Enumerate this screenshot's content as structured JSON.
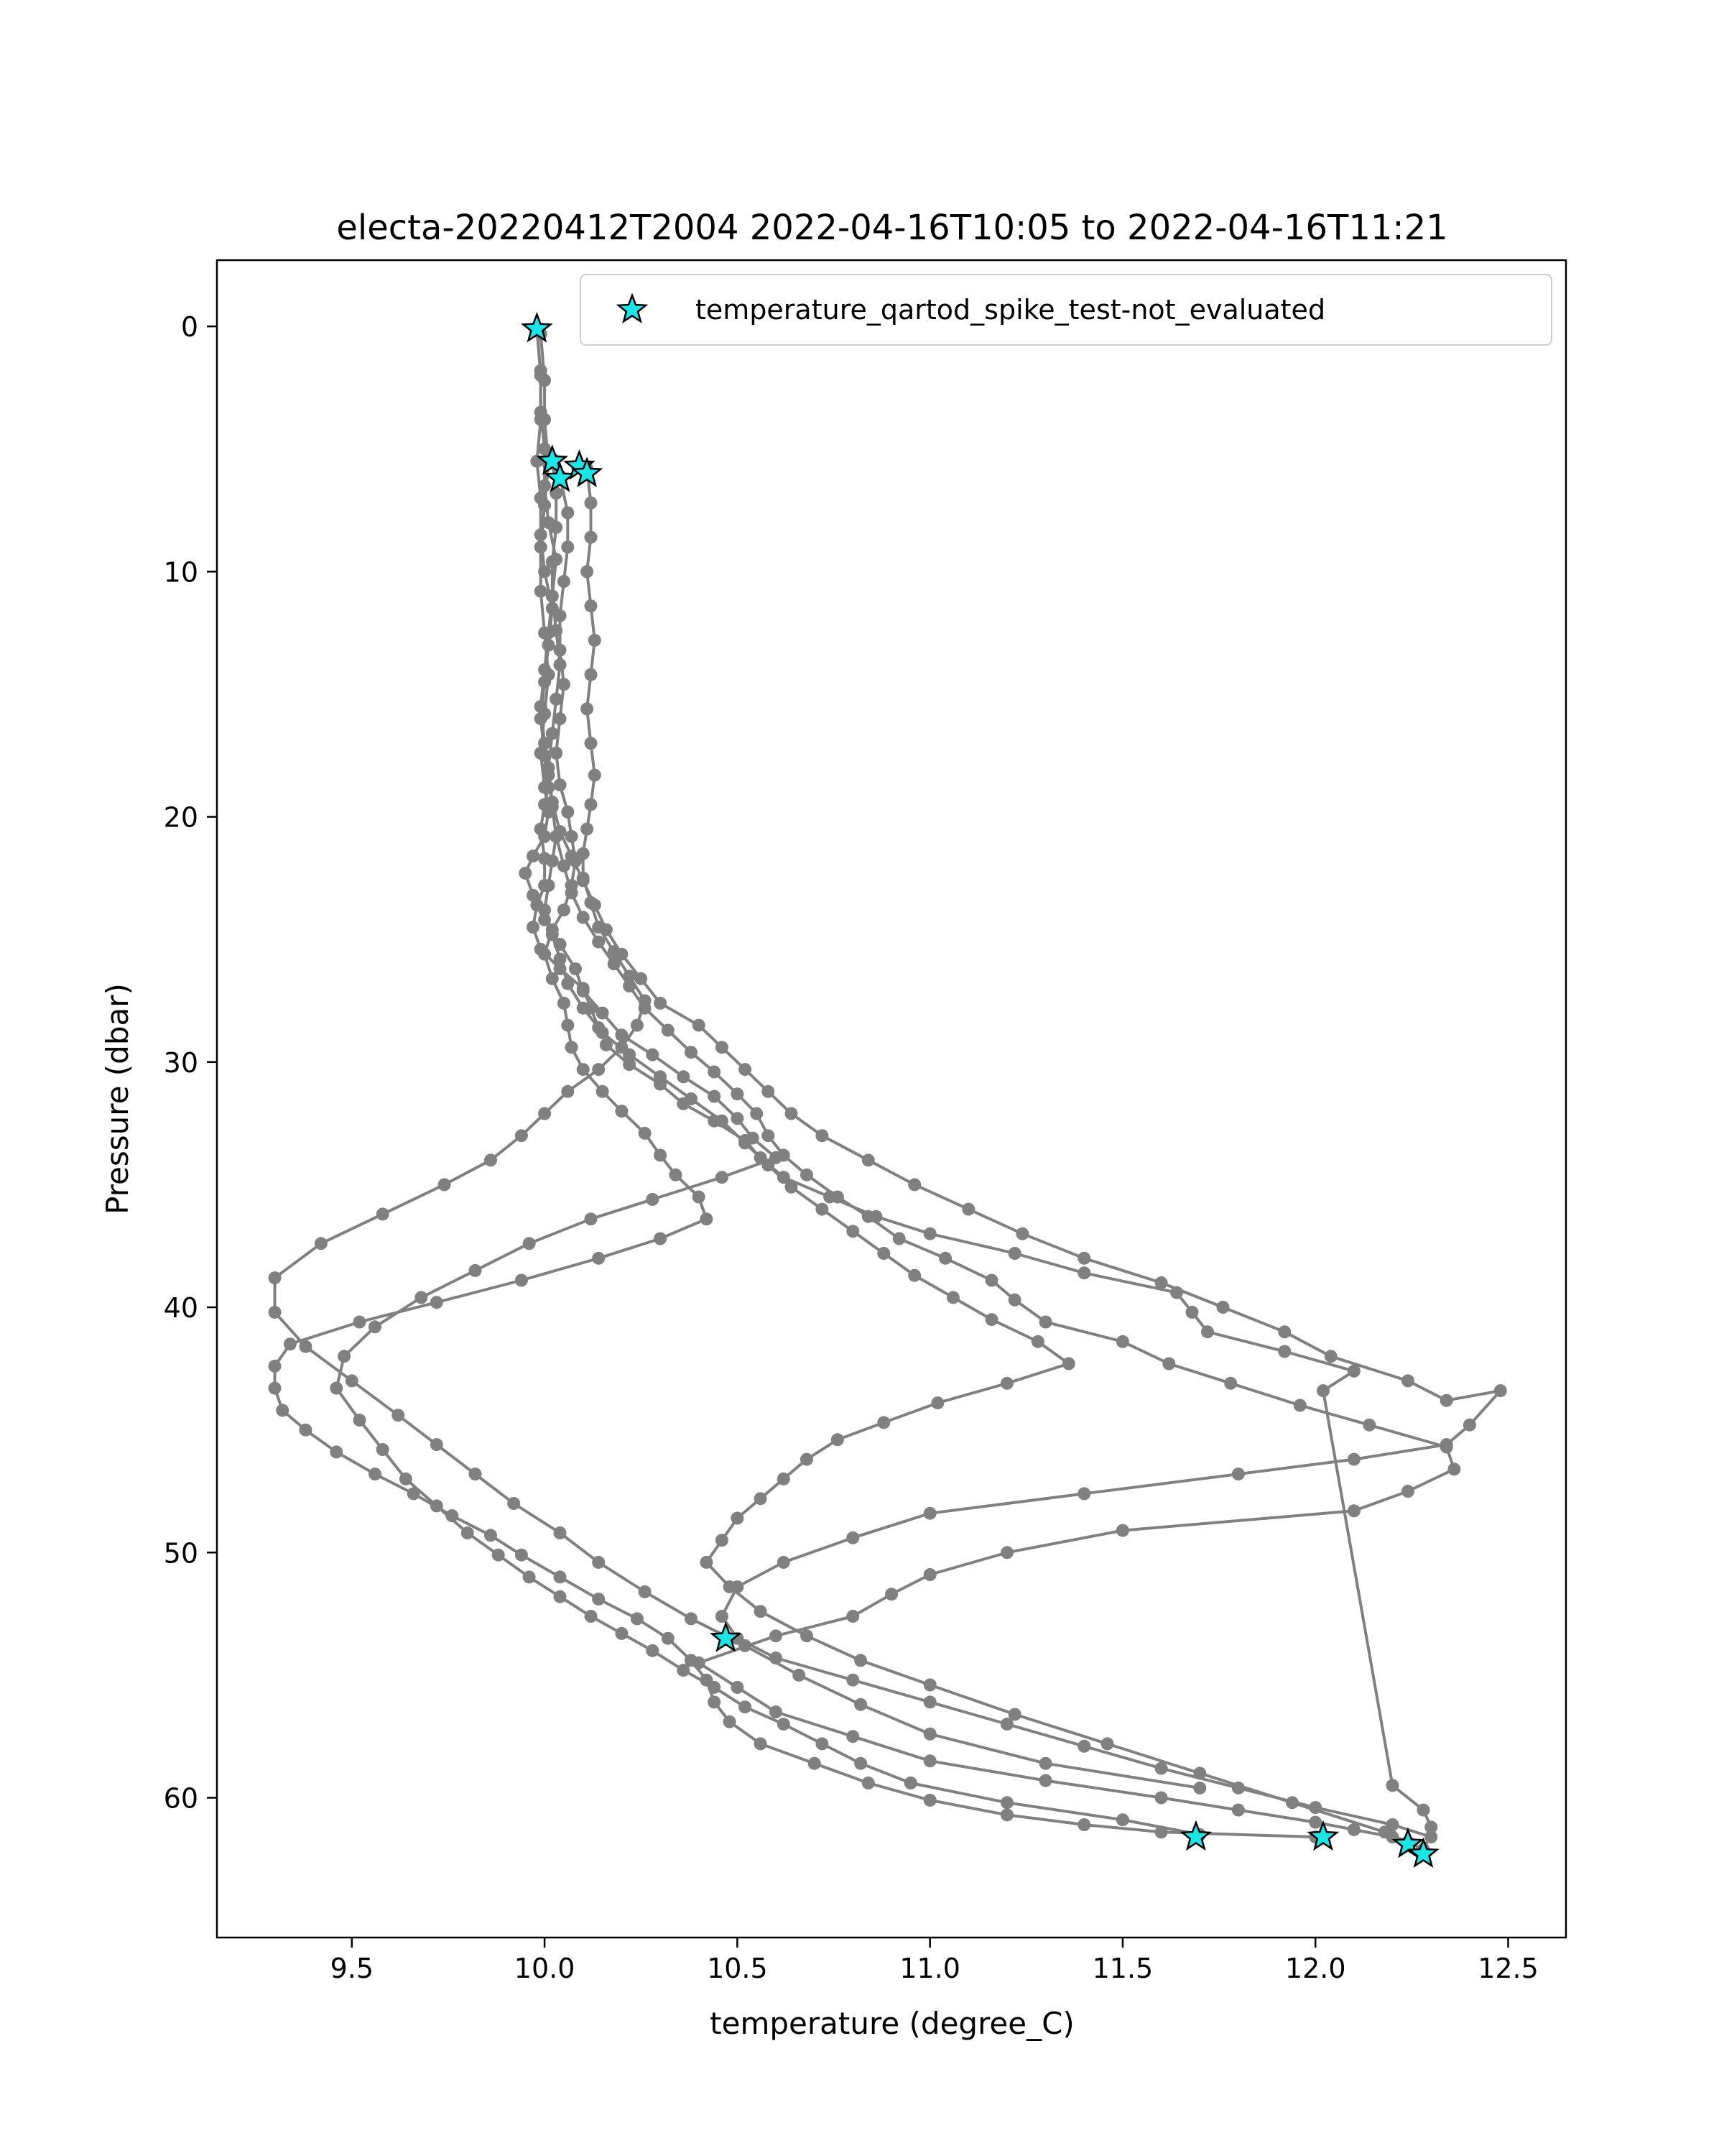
{
  "chart_data": {
    "type": "line",
    "title": "electa-20220412T2004 2022-04-16T10:05 to 2022-04-16T11:21",
    "xlabel": "temperature (degree_C)",
    "ylabel": "Pressure (dbar)",
    "xlim": [
      9.15,
      12.65
    ],
    "ylim": [
      65.7,
      -2.7
    ],
    "y_inverted": true,
    "xticks": [
      "9.5",
      "10.0",
      "10.5",
      "11.0",
      "11.5",
      "12.0",
      "12.5"
    ],
    "yticks": [
      "0",
      "10",
      "20",
      "30",
      "40",
      "50",
      "60"
    ],
    "grid": false,
    "legend_position": "top-right",
    "colors": {
      "line": "#808080",
      "marker": "#808080",
      "star_fill": "#19e6e6",
      "star_edge": "#000000"
    },
    "series": [
      {
        "x": [
          9.98,
          9.99,
          9.99,
          9.98,
          9.99,
          9.99,
          10.0,
          10.02,
          10.01,
          10.0,
          9.99,
          10.0,
          10.01,
          10.0,
          9.99,
          10.0,
          10.0,
          9.98,
          9.97,
          9.99,
          10.04,
          10.1,
          10.12,
          10.14,
          10.16,
          10.22,
          10.3,
          10.36,
          10.44,
          10.52,
          10.56,
          10.62,
          10.74,
          10.86,
          11.0,
          11.22,
          11.4,
          11.64,
          11.68,
          11.72,
          11.92,
          12.1,
          12.02,
          12.2,
          12.28,
          12.3,
          12.28
        ],
        "y": [
          0.1,
          2.0,
          3.8,
          5.5,
          7.0,
          8.5,
          10.0,
          11.5,
          13.0,
          14.5,
          16.0,
          17.5,
          18.8,
          19.5,
          20.5,
          21.7,
          22.8,
          23.6,
          24.5,
          25.4,
          26.2,
          27.0,
          27.8,
          28.6,
          29.3,
          30.1,
          30.9,
          31.7,
          32.4,
          33.2,
          33.9,
          34.7,
          35.5,
          36.3,
          37.0,
          37.8,
          38.6,
          39.4,
          40.2,
          41.0,
          41.8,
          42.6,
          43.4,
          59.5,
          60.5,
          61.2,
          62.3
        ]
      },
      {
        "x": [
          9.98,
          9.99,
          9.99,
          10.0,
          10.0,
          10.01,
          10.03,
          10.02,
          10.01,
          10.0,
          9.99,
          10.0,
          10.01,
          10.02,
          10.03,
          10.05,
          10.07,
          10.1,
          10.14,
          10.18,
          10.22,
          10.26,
          10.32,
          10.38,
          10.44,
          10.5,
          10.55,
          10.58,
          10.62,
          10.68,
          10.76,
          10.84,
          10.92,
          11.04,
          11.16,
          11.22,
          11.3,
          11.5,
          11.62,
          11.78,
          11.96,
          12.14,
          12.34,
          12.36,
          12.24,
          12.1,
          11.5,
          11.2,
          11.0,
          10.9,
          10.8,
          10.6,
          10.4,
          10.5,
          10.6,
          10.8,
          11.0,
          11.3,
          11.6,
          11.8,
          12.0,
          12.1,
          12.2,
          12.24
        ],
        "y": [
          0.1,
          1.8,
          3.5,
          5.0,
          6.5,
          8.0,
          9.5,
          11.0,
          12.5,
          14.0,
          15.5,
          17.0,
          18.3,
          19.6,
          20.8,
          22.0,
          23.1,
          24.1,
          25.1,
          26.0,
          26.9,
          27.8,
          28.7,
          29.6,
          30.4,
          31.3,
          32.1,
          33.0,
          33.8,
          34.6,
          35.5,
          36.3,
          37.2,
          38.0,
          38.9,
          39.7,
          40.6,
          41.4,
          42.3,
          43.1,
          44.0,
          44.8,
          45.7,
          46.6,
          47.5,
          48.3,
          49.1,
          50.0,
          50.9,
          51.7,
          52.6,
          53.4,
          54.5,
          55.5,
          56.5,
          57.5,
          58.5,
          59.3,
          60.0,
          60.5,
          61.0,
          61.3,
          61.6,
          61.8
        ]
      },
      {
        "x": [
          9.99,
          10.0,
          10.0,
          10.01,
          10.0,
          9.99,
          9.99,
          10.0,
          10.01,
          10.0,
          9.99,
          10.0,
          10.01,
          10.0,
          9.97,
          9.95,
          9.97,
          10.0,
          10.04,
          10.08,
          10.1,
          10.15,
          10.2,
          10.28,
          10.36,
          10.44,
          10.5,
          10.54,
          10.6,
          10.46,
          10.28,
          10.12,
          9.96,
          9.82,
          9.68,
          9.56,
          9.48,
          9.46,
          9.52,
          9.58,
          9.64,
          9.72,
          9.8,
          9.88,
          9.96,
          10.04,
          10.12,
          10.2,
          10.28,
          10.36,
          10.44,
          10.52,
          10.62,
          10.72,
          10.82,
          10.95,
          11.2,
          11.5,
          11.7
        ],
        "y": [
          0.3,
          2.2,
          3.8,
          5.6,
          7.3,
          9.0,
          10.8,
          12.5,
          14.2,
          15.8,
          17.4,
          18.8,
          19.8,
          20.8,
          21.6,
          22.3,
          23.2,
          24.2,
          25.2,
          26.2,
          27.1,
          28.0,
          28.9,
          29.7,
          30.6,
          31.4,
          32.3,
          33.1,
          33.9,
          34.7,
          35.6,
          36.4,
          37.4,
          38.5,
          39.6,
          40.8,
          42.0,
          43.3,
          44.6,
          45.8,
          47.0,
          48.1,
          49.2,
          50.1,
          51.0,
          51.8,
          52.6,
          53.3,
          54.0,
          54.8,
          55.5,
          56.3,
          57.0,
          57.8,
          58.6,
          59.4,
          60.2,
          60.9,
          61.5
        ]
      },
      {
        "x": [
          10.04,
          10.06,
          10.06,
          10.05,
          10.04,
          10.04,
          10.05,
          10.04,
          10.03,
          10.04,
          10.06,
          10.07,
          10.08,
          10.07,
          10.05,
          10.02,
          10.0,
          10.02,
          10.05,
          10.06,
          10.07,
          10.1,
          10.15,
          10.2,
          10.26,
          10.3,
          10.34,
          10.4,
          10.42,
          10.3,
          10.14,
          9.94,
          9.72,
          9.52,
          9.34,
          9.3,
          9.3,
          9.32,
          9.38,
          9.46,
          9.56,
          9.66,
          9.76,
          9.86,
          9.94,
          10.04,
          10.14,
          10.24,
          10.32,
          10.38,
          10.42,
          10.44,
          10.48,
          10.56,
          10.7,
          10.84,
          11.0,
          11.2,
          11.4,
          11.6,
          12.0
        ],
        "y": [
          6.1,
          7.6,
          9.0,
          10.4,
          11.8,
          13.2,
          14.6,
          16.0,
          17.4,
          18.7,
          19.8,
          20.8,
          21.8,
          22.8,
          23.8,
          24.6,
          25.6,
          26.6,
          27.6,
          28.5,
          29.4,
          30.3,
          31.2,
          32.0,
          32.9,
          33.8,
          34.6,
          35.5,
          36.4,
          37.2,
          38.0,
          38.9,
          39.8,
          40.6,
          41.5,
          42.4,
          43.3,
          44.2,
          45.0,
          45.9,
          46.8,
          47.6,
          48.5,
          49.3,
          50.1,
          51.0,
          51.9,
          52.7,
          53.5,
          54.4,
          55.2,
          56.1,
          56.9,
          57.8,
          58.6,
          59.4,
          60.1,
          60.7,
          61.1,
          61.4,
          61.6
        ]
      },
      {
        "x": [
          10.11,
          10.12,
          10.12,
          10.11,
          10.12,
          10.13,
          10.12,
          10.11,
          10.12,
          10.13,
          10.12,
          10.11,
          10.1,
          10.1,
          10.12,
          10.14,
          10.18,
          10.22,
          10.26,
          10.24,
          10.2,
          10.14,
          10.06,
          10.0,
          9.94,
          9.86,
          9.74,
          9.58,
          9.42,
          9.3,
          9.3,
          9.38,
          9.5,
          9.62,
          9.72,
          9.82,
          9.92,
          10.04,
          10.14,
          10.26,
          10.38,
          10.52,
          10.66,
          10.82,
          11.0,
          11.3,
          11.7
        ],
        "y": [
          5.8,
          7.2,
          8.6,
          10.0,
          11.4,
          12.8,
          14.2,
          15.6,
          17.0,
          18.3,
          19.5,
          20.5,
          21.5,
          22.5,
          23.5,
          24.5,
          25.5,
          26.5,
          27.5,
          28.5,
          29.4,
          30.3,
          31.2,
          32.1,
          33.0,
          34.0,
          35.0,
          36.2,
          37.4,
          38.8,
          40.2,
          41.6,
          43.0,
          44.4,
          45.6,
          46.8,
          48.0,
          49.2,
          50.4,
          51.6,
          52.7,
          53.8,
          55.0,
          56.2,
          57.4,
          58.6,
          59.6
        ]
      },
      {
        "x": [
          10.02,
          10.03,
          10.03,
          10.02,
          10.02,
          10.03,
          10.04,
          10.03,
          10.02,
          10.01,
          10.02,
          10.04,
          10.07,
          10.1,
          10.13,
          10.16,
          10.2,
          10.25,
          10.3,
          10.4,
          10.46,
          10.52,
          10.58,
          10.64,
          10.72,
          10.84,
          10.96,
          11.1,
          11.24,
          11.4,
          11.6,
          11.76,
          11.92,
          12.04,
          12.24,
          12.34,
          12.48,
          12.4,
          12.34,
          12.1,
          11.8,
          11.4,
          11.0,
          10.8,
          10.62,
          10.5,
          10.46,
          10.5,
          10.6,
          10.8,
          11.0,
          11.2,
          11.4,
          11.6,
          11.8,
          12.0,
          12.2,
          12.3
        ],
        "y": [
          5.4,
          6.8,
          8.2,
          9.6,
          11.0,
          12.4,
          13.8,
          15.2,
          16.6,
          18.0,
          19.4,
          20.6,
          21.6,
          22.6,
          23.6,
          24.6,
          25.6,
          26.6,
          27.6,
          28.5,
          29.4,
          30.3,
          31.2,
          32.1,
          33.0,
          34.0,
          35.0,
          36.0,
          37.0,
          38.0,
          39.0,
          40.0,
          41.0,
          42.0,
          43.0,
          43.8,
          43.4,
          44.8,
          45.6,
          46.2,
          46.8,
          47.6,
          48.4,
          49.4,
          50.4,
          51.4,
          52.6,
          53.5,
          54.3,
          55.2,
          56.1,
          57.0,
          57.9,
          58.8,
          59.6,
          60.4,
          61.1,
          61.6
        ]
      },
      {
        "x": [
          10.03,
          10.02,
          10.01,
          10.0,
          10.02,
          10.04,
          10.06,
          10.1,
          10.15,
          10.22,
          10.3,
          10.38,
          10.46,
          10.52,
          10.58,
          10.64,
          10.72,
          10.8,
          10.88,
          10.96,
          11.06,
          11.16,
          11.28,
          11.36,
          11.2,
          11.02,
          10.88,
          10.76,
          10.68,
          10.62,
          10.56,
          10.5,
          10.46,
          10.42,
          10.48,
          10.56,
          10.68,
          10.82,
          11.0,
          11.22,
          11.46,
          11.7,
          11.94,
          12.18,
          12.28
        ],
        "y": [
          20.8,
          21.8,
          22.8,
          23.8,
          24.8,
          25.8,
          26.8,
          27.8,
          28.8,
          29.7,
          30.6,
          31.5,
          32.4,
          33.3,
          34.2,
          35.1,
          36.0,
          36.9,
          37.8,
          38.7,
          39.6,
          40.5,
          41.4,
          42.3,
          43.1,
          43.9,
          44.7,
          45.4,
          46.2,
          47.0,
          47.8,
          48.6,
          49.5,
          50.4,
          51.4,
          52.4,
          53.4,
          54.4,
          55.4,
          56.6,
          57.8,
          59.0,
          60.2,
          61.4,
          62.1
        ]
      }
    ],
    "flagged_points": {
      "label": "temperature_qartod_spike_test-not_evaluated",
      "marker": "star",
      "x": [
        9.98,
        10.02,
        10.04,
        10.09,
        10.11,
        10.47,
        11.69,
        12.02,
        12.24,
        12.28
      ],
      "y": [
        0.1,
        5.5,
        6.2,
        5.7,
        6.0,
        53.5,
        61.6,
        61.6,
        61.9,
        62.3
      ]
    }
  }
}
